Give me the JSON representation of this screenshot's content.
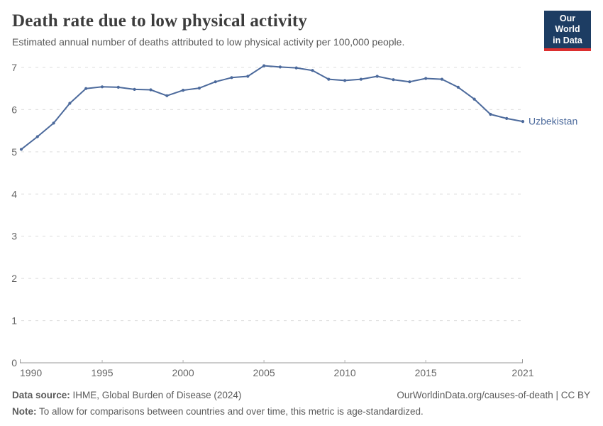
{
  "header": {
    "title": "Death rate due to low physical activity",
    "subtitle": "Estimated annual number of deaths attributed to low physical activity per 100,000 people."
  },
  "logo": {
    "line1": "Our World",
    "line2": "in Data",
    "bg_color": "#1d3d63",
    "accent_color": "#dc2e2e"
  },
  "chart_data": {
    "type": "line",
    "title": "Death rate due to low physical activity",
    "x": [
      1990,
      1991,
      1992,
      1993,
      1994,
      1995,
      1996,
      1997,
      1998,
      1999,
      2000,
      2001,
      2002,
      2003,
      2004,
      2005,
      2006,
      2007,
      2008,
      2009,
      2010,
      2011,
      2012,
      2013,
      2014,
      2015,
      2016,
      2017,
      2018,
      2019,
      2020,
      2021
    ],
    "series": [
      {
        "name": "Uzbekistan",
        "color": "#4C6A9C",
        "values": [
          5.06,
          5.36,
          5.68,
          6.15,
          6.5,
          6.54,
          6.53,
          6.48,
          6.47,
          6.33,
          6.46,
          6.51,
          6.66,
          6.76,
          6.79,
          7.04,
          7.01,
          6.99,
          6.93,
          6.72,
          6.69,
          6.72,
          6.79,
          6.71,
          6.66,
          6.74,
          6.72,
          6.53,
          6.25,
          5.89,
          5.79,
          5.72
        ]
      }
    ],
    "ylim": [
      0,
      7
    ],
    "yticks": [
      0,
      1,
      2,
      3,
      4,
      5,
      6,
      7
    ],
    "xticks": [
      1990,
      1995,
      2000,
      2005,
      2010,
      2015,
      2021
    ],
    "grid": "horizontal-dashed",
    "legend_position": "end-of-line",
    "entity_label": "Uzbekistan",
    "colors": {
      "gridline": "#dcdcdc",
      "axis_line": "#999999",
      "tick_text": "#666666"
    }
  },
  "footer": {
    "datasource_label": "Data source:",
    "datasource_text": " IHME, Global Burden of Disease (2024)",
    "credit": "OurWorldinData.org/causes-of-death | CC BY",
    "note_label": "Note:",
    "note_text": " To allow for comparisons between countries and over time, this metric is age-standardized."
  }
}
